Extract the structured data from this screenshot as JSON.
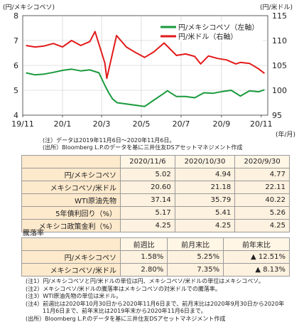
{
  "chart_data": {
    "type": "line",
    "left_unit": "(円/メキシコペソ)",
    "right_unit": "(円/米ドル)",
    "year_unit": "(年/月)",
    "x_ticks": [
      "19/11",
      "20/1",
      "20/3",
      "20/5",
      "20/7",
      "20/9",
      "20/11"
    ],
    "y_left": {
      "ticks": [
        "8",
        "7",
        "6",
        "5",
        "4"
      ],
      "min": 4,
      "max": 8
    },
    "y_right": {
      "ticks": [
        "115",
        "110",
        "105",
        "100",
        "95"
      ],
      "min": 95,
      "max": 115
    },
    "series": [
      {
        "name": "円/メキシコペソ（左軸）",
        "axis": "left",
        "color": "#1a9a3c",
        "x": [
          "2019-11-06",
          "2019-11-20",
          "2019-12-04",
          "2019-12-18",
          "2020-01-01",
          "2020-01-15",
          "2020-01-29",
          "2020-02-12",
          "2020-02-26",
          "2020-03-06",
          "2020-03-12",
          "2020-03-18",
          "2020-03-25",
          "2020-04-08",
          "2020-04-22",
          "2020-05-06",
          "2020-05-20",
          "2020-06-03",
          "2020-06-10",
          "2020-06-24",
          "2020-07-08",
          "2020-07-22",
          "2020-08-05",
          "2020-08-19",
          "2020-09-02",
          "2020-09-16",
          "2020-09-30",
          "2020-10-14",
          "2020-10-28",
          "2020-11-06"
        ],
        "values": [
          5.7,
          5.62,
          5.65,
          5.72,
          5.8,
          5.85,
          5.78,
          5.82,
          5.7,
          5.2,
          4.9,
          4.65,
          4.5,
          4.45,
          4.4,
          4.35,
          4.6,
          4.85,
          4.98,
          4.75,
          4.75,
          4.7,
          4.9,
          4.88,
          4.95,
          5.0,
          4.77,
          4.98,
          4.94,
          5.02
        ]
      },
      {
        "name": "円/米ドル（右軸）",
        "axis": "right",
        "color": "#e21a1a",
        "x": [
          "2019-11-06",
          "2019-11-20",
          "2019-12-04",
          "2019-12-18",
          "2020-01-01",
          "2020-01-15",
          "2020-01-29",
          "2020-02-12",
          "2020-02-20",
          "2020-03-06",
          "2020-03-09",
          "2020-03-24",
          "2020-04-08",
          "2020-04-22",
          "2020-05-06",
          "2020-05-20",
          "2020-06-05",
          "2020-06-24",
          "2020-07-08",
          "2020-07-22",
          "2020-07-31",
          "2020-08-12",
          "2020-08-26",
          "2020-09-09",
          "2020-09-23",
          "2020-09-30",
          "2020-10-14",
          "2020-10-28",
          "2020-11-06"
        ],
        "values": [
          109.0,
          108.7,
          108.9,
          109.4,
          108.7,
          110.0,
          109.0,
          109.8,
          111.8,
          105.5,
          102.4,
          111.0,
          108.7,
          107.6,
          106.6,
          107.7,
          109.5,
          107.0,
          107.3,
          106.8,
          105.3,
          106.9,
          106.4,
          106.1,
          105.3,
          105.6,
          105.4,
          104.3,
          103.4
        ]
      }
    ]
  },
  "chart_notes": {
    "line1": "(注）データは2019年11月6日～2020年11月6日。",
    "line2": "(出所）Bloomberg L.P.のデータを基に三井住友DSアセットマネジメント作成"
  },
  "table1": {
    "headers": [
      "2020/11/6",
      "2020/10/30",
      "2020/9/30"
    ],
    "rows": [
      {
        "label": "円/メキシコペソ",
        "values": [
          "5.02",
          "4.94",
          "4.77"
        ]
      },
      {
        "label": "メキシコペソ/米ドル",
        "values": [
          "20.60",
          "21.18",
          "22.11"
        ]
      },
      {
        "label": "WTI原油先物",
        "values": [
          "37.14",
          "35.79",
          "40.22"
        ]
      },
      {
        "label": "5年債利回り（%）",
        "values": [
          "5.17",
          "5.41",
          "5.26"
        ]
      },
      {
        "label": "メキシコ政策金利（%）",
        "values": [
          "4.25",
          "4.25",
          "4.25"
        ]
      }
    ]
  },
  "table2": {
    "title": "騰落率",
    "headers": [
      "前週比",
      "前月末比",
      "前年末比"
    ],
    "rows": [
      {
        "label": "円/メキシコペソ",
        "values": [
          "1.58%",
          "5.25%",
          "▲ 12.51%"
        ]
      },
      {
        "label": "メキシコペソ/米ドル",
        "values": [
          "2.80%",
          "7.35%",
          "▲ 8.13%"
        ]
      }
    ]
  },
  "footnotes": [
    "(注1）円/メキシコペソと円/米ドルの単位は円、メキシコペソ/米ドルの単位はメキシコペソ。",
    "(注2）メキシコペソ/米ドルの騰落率はメキシコペソの対米ドルでの騰落率。",
    "(注3）WTI原油先物の単位は米ドル。",
    "(注4）前週比は2020年10月30日から2020年11月6日まで、前月末比は2020年9月30日から2020年",
    "　　　11月6日まで、前年末比は2019年末から2020年11月6日まで。",
    "(出所）Bloomberg L.P.のデータを基に三井住友DSアセットマネジメント作成"
  ]
}
